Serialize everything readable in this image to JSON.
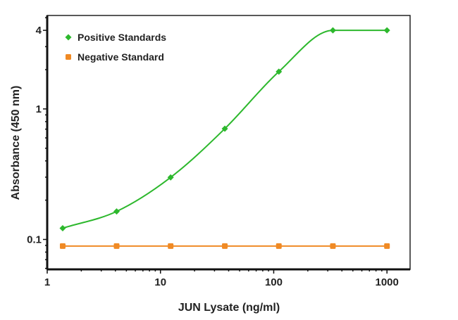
{
  "chart_data": {
    "type": "line",
    "title": "",
    "xlabel": "JUN Lysate (ng/ml)",
    "ylabel": "Absorbance (450 nm)",
    "xscale": "log",
    "yscale": "log",
    "xlim": [
      1,
      1600
    ],
    "ylim": [
      0.059,
      5.2
    ],
    "xticks": [
      1,
      10,
      100,
      1000
    ],
    "xtick_labels": [
      "1",
      "10",
      "100",
      "1000"
    ],
    "yticks": [
      0.1,
      1,
      4
    ],
    "ytick_labels": [
      "0.1",
      "1",
      "4"
    ],
    "grid": false,
    "legend_position": "top-left",
    "x": [
      1.37,
      4.1,
      12.3,
      37,
      111,
      333,
      1000
    ],
    "series": [
      {
        "name": "Positive Standards",
        "color": "#2db82d",
        "marker": "diamond",
        "smooth": true,
        "values": [
          0.122,
          0.164,
          0.299,
          0.706,
          1.93,
          4.0,
          4.0
        ]
      },
      {
        "name": "Negative Standard",
        "color": "#f08a24",
        "marker": "square",
        "smooth": false,
        "values": [
          0.089,
          0.089,
          0.089,
          0.089,
          0.089,
          0.089,
          0.089
        ]
      }
    ]
  }
}
